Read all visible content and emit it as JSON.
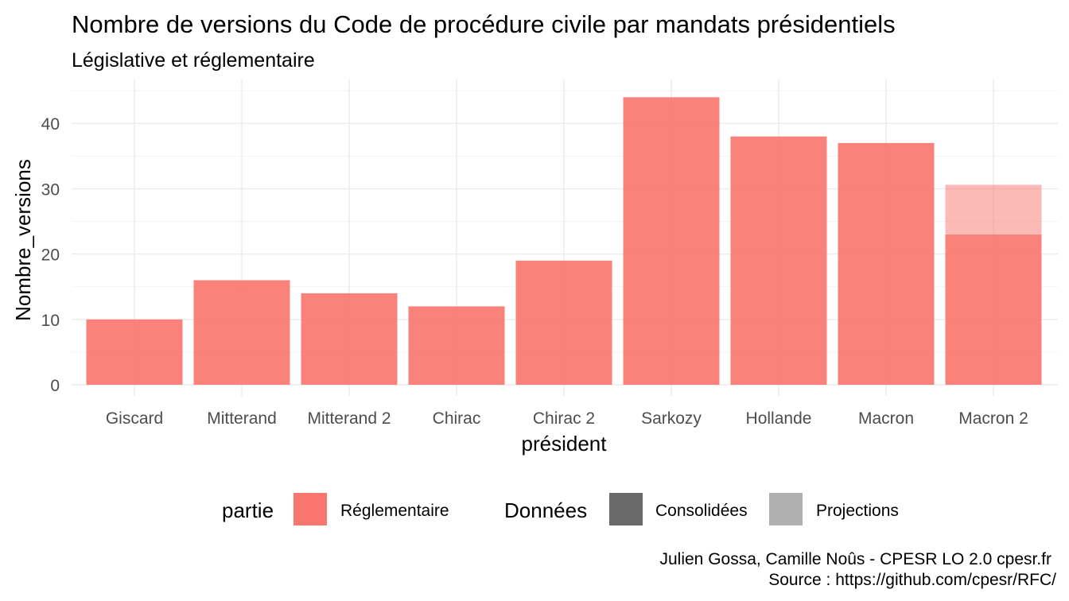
{
  "chart_data": {
    "type": "bar",
    "title": "Nombre de versions du Code de procédure civile par mandats présidentiels",
    "subtitle": "Législative et réglementaire",
    "xlabel": "président",
    "ylabel": "Nombre_versions",
    "categories": [
      "Giscard",
      "Mitterand",
      "Mitterand 2",
      "Chirac",
      "Chirac 2",
      "Sarkozy",
      "Hollande",
      "Macron",
      "Macron 2"
    ],
    "series": [
      {
        "name": "Consolidées",
        "partie": "Réglementaire",
        "values": [
          10,
          16,
          14,
          12,
          19,
          44,
          38,
          37,
          23
        ]
      },
      {
        "name": "Projections",
        "partie": "Réglementaire",
        "values": [
          0,
          0,
          0,
          0,
          0,
          0,
          0,
          0,
          7.6
        ]
      }
    ],
    "stacked": true,
    "ylim": [
      0,
      45
    ],
    "yticks": [
      0,
      10,
      20,
      30,
      40
    ],
    "grid": true,
    "legend": {
      "position": "bottom",
      "partie_title": "partie",
      "partie_items": [
        {
          "label": "Réglementaire",
          "color": "#f8766d"
        }
      ],
      "donnees_title": "Données",
      "donnees_items": [
        {
          "label": "Consolidées",
          "color": "#696969"
        },
        {
          "label": "Projections",
          "color": "#b0b0b0"
        }
      ]
    },
    "caption_line1": "Julien Gossa, Camille Noûs - CPESR LO 2.0 cpesr.fr",
    "caption_line2": "Source : https://github.com/cpesr/RFC/",
    "colors": {
      "bar_consolidated": "#f8766d",
      "bar_projection": "#f8766d",
      "bar_consolidated_opacity": 0.9,
      "bar_projection_opacity": 0.5
    }
  }
}
